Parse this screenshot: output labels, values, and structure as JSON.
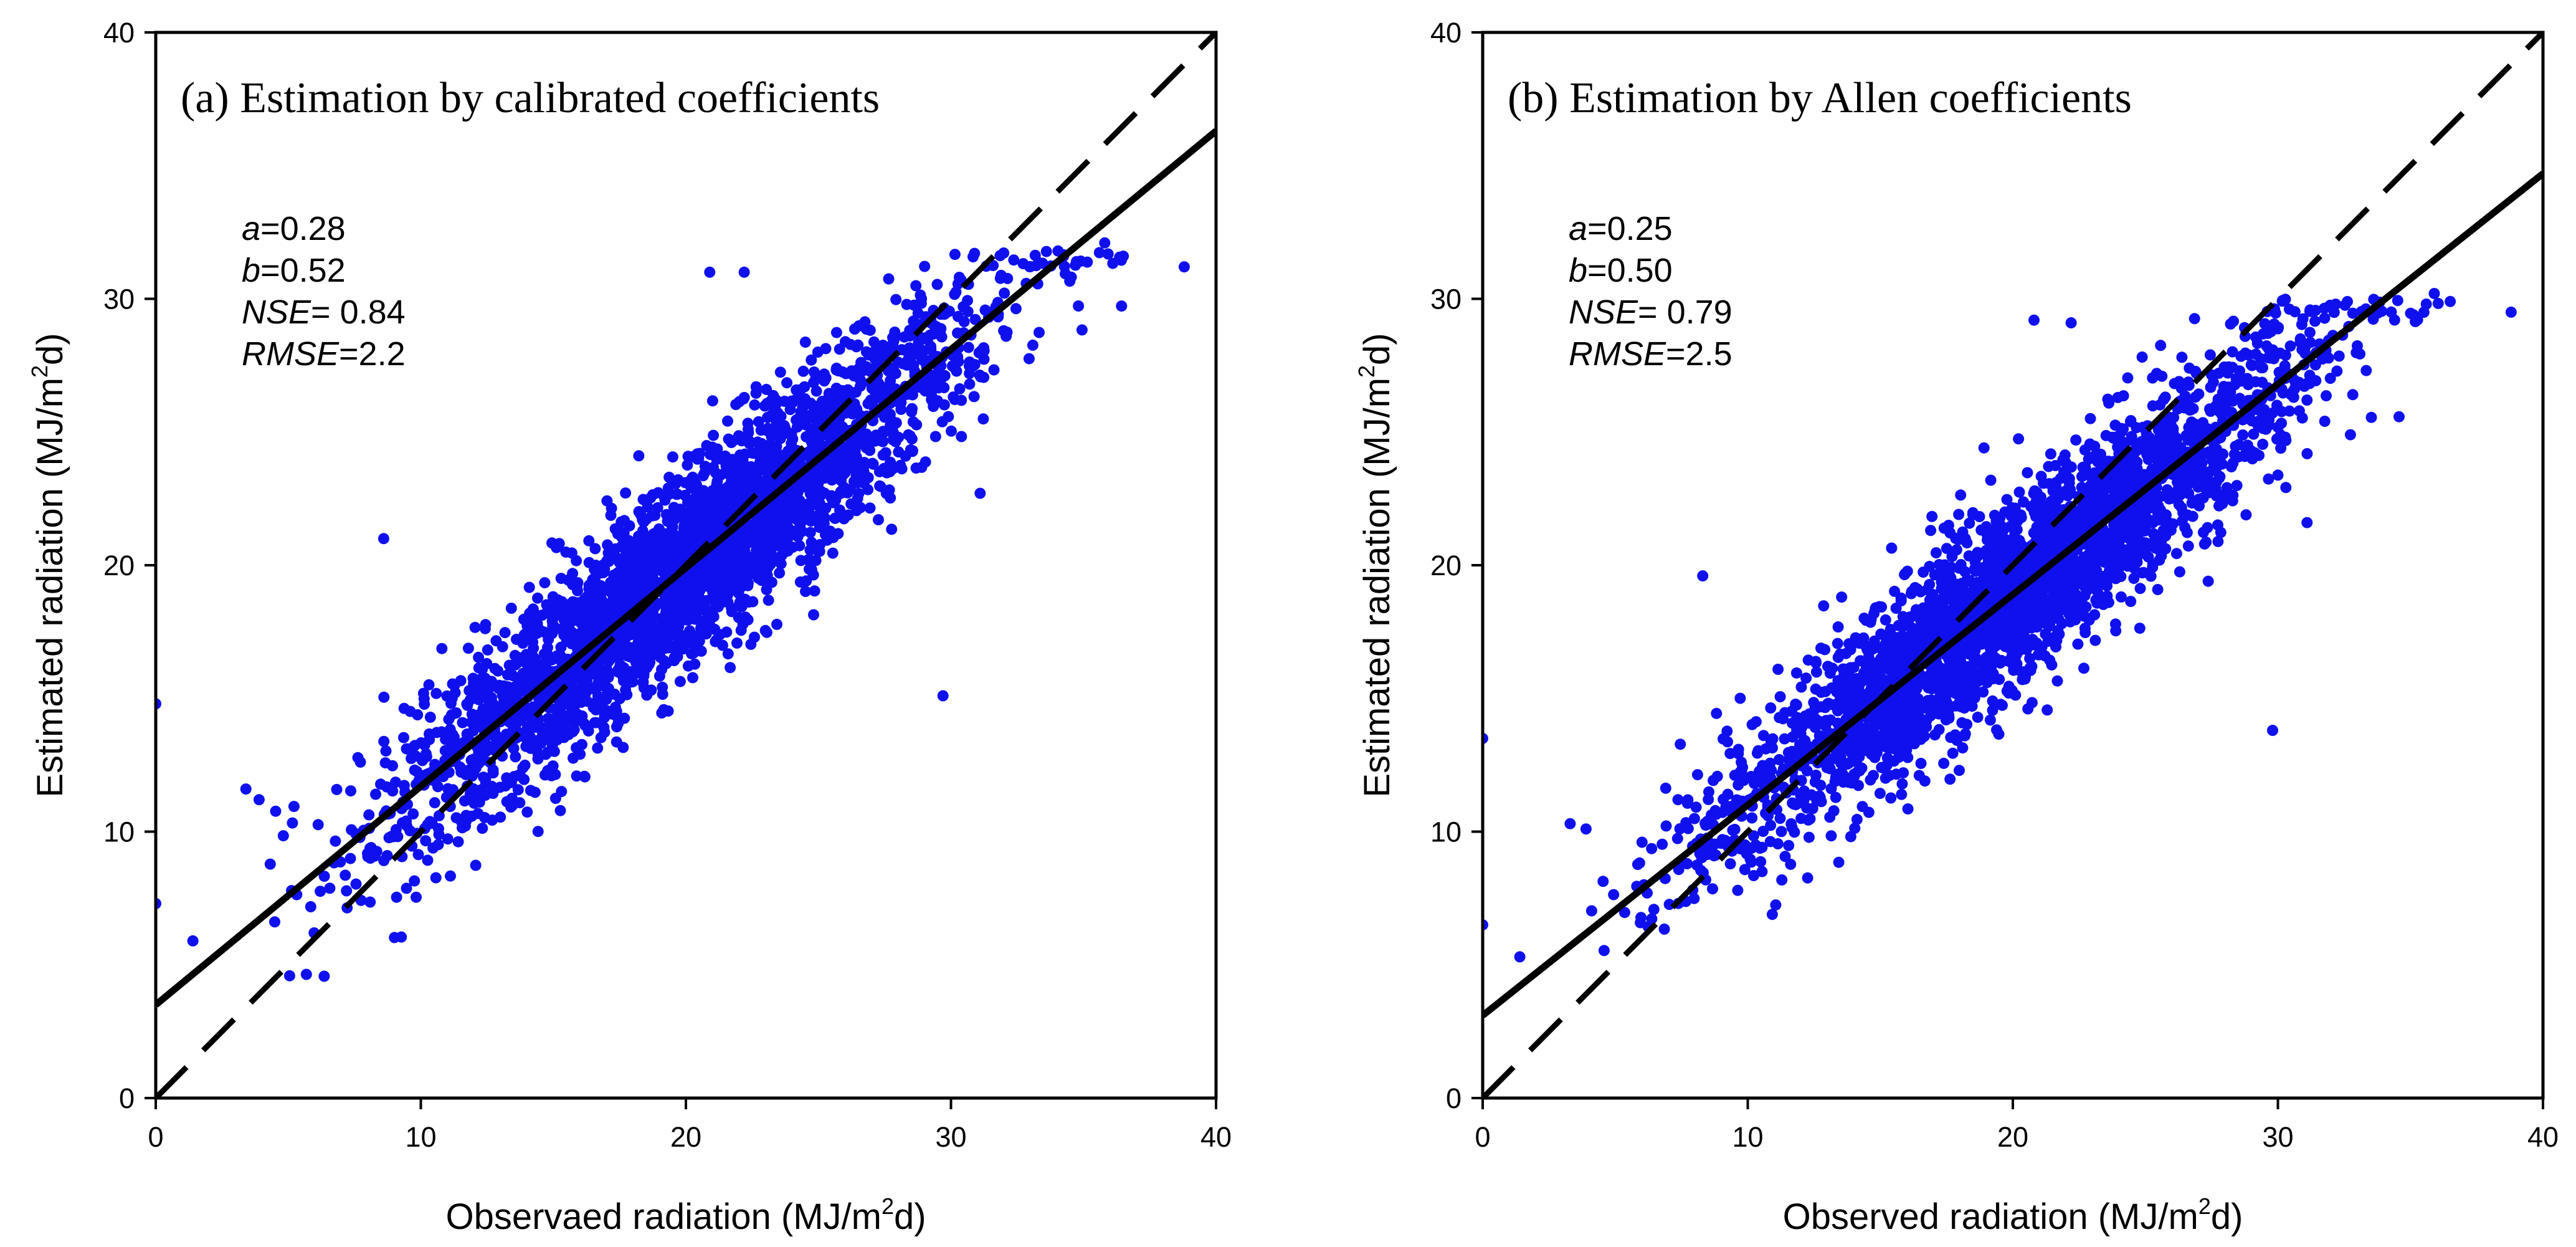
{
  "chart_data": [
    {
      "type": "scatter",
      "panel": "a",
      "title": "(a) Estimation by calibrated coefficients",
      "xlabel": "Observaed radiation (MJ/m",
      "xlabel_sup": "2",
      "xlabel_tail": "d)",
      "ylabel": "Estimated radiation (MJ/m",
      "ylabel_sup": "2",
      "ylabel_tail": "d)",
      "xlim": [
        0,
        40
      ],
      "ylim": [
        0,
        40
      ],
      "xticks": [
        "0",
        "10",
        "20",
        "30",
        "40"
      ],
      "yticks": [
        "0",
        "10",
        "20",
        "30",
        "40"
      ],
      "stats": [
        {
          "label": "a",
          "text": "=0.28"
        },
        {
          "label": "b",
          "text": "=0.52"
        },
        {
          "label": "NSE",
          "text": "= 0.84"
        },
        {
          "label": "RMSE",
          "text": "=2.2"
        }
      ],
      "fit_line": {
        "intercept": 3.5,
        "slope": 0.82
      },
      "one_to_one": true,
      "point_color": "#1010ee",
      "cloud": {
        "slope": 0.81,
        "intercept": 3.7,
        "spread": 1.8,
        "x_mean": 20,
        "x_sd": 5.5,
        "count": 3200,
        "x_min": 4,
        "x_max": 36.5,
        "y_cap": 31.8
      },
      "outliers": [
        [
          0,
          14.8
        ],
        [
          0,
          7.3
        ],
        [
          1.4,
          5.9
        ],
        [
          3.4,
          11.6
        ],
        [
          3.9,
          11.2
        ],
        [
          8.6,
          21
        ],
        [
          29.7,
          15.1
        ],
        [
          38.8,
          31.2
        ],
        [
          36.5,
          31.6
        ],
        [
          35.8,
          32.1
        ],
        [
          31.1,
          22.7
        ],
        [
          22.2,
          31
        ],
        [
          20.9,
          31
        ]
      ]
    },
    {
      "type": "scatter",
      "panel": "b",
      "title": "(b) Estimation by Allen coefficients",
      "xlabel": "Observed radiation (MJ/m",
      "xlabel_sup": "2",
      "xlabel_tail": "d)",
      "ylabel": "Estimated radiation (MJ/m",
      "ylabel_sup": "2",
      "ylabel_tail": "d)",
      "xlim": [
        0,
        40
      ],
      "ylim": [
        0,
        40
      ],
      "xticks": [
        "0",
        "10",
        "20",
        "30",
        "40"
      ],
      "yticks": [
        "0",
        "10",
        "20",
        "30",
        "40"
      ],
      "stats": [
        {
          "label": "a",
          "text": "=0.25"
        },
        {
          "label": "b",
          "text": "=0.50"
        },
        {
          "label": "NSE",
          "text": "= 0.79"
        },
        {
          "label": "RMSE",
          "text": "=2.5"
        }
      ],
      "fit_line": {
        "intercept": 3.1,
        "slope": 0.79
      },
      "one_to_one": true,
      "point_color": "#1010ee",
      "cloud": {
        "slope": 0.78,
        "intercept": 3.3,
        "spread": 1.7,
        "x_mean": 20,
        "x_sd": 5.5,
        "count": 3200,
        "x_min": 4,
        "x_max": 36.5,
        "y_cap": 30
      },
      "outliers": [
        [
          0,
          13.5
        ],
        [
          0,
          6.5
        ],
        [
          1.4,
          5.3
        ],
        [
          3.3,
          10.3
        ],
        [
          3.9,
          10.1
        ],
        [
          8.3,
          19.6
        ],
        [
          29.8,
          13.8
        ],
        [
          38.8,
          29.5
        ],
        [
          36.5,
          29.9
        ],
        [
          35.9,
          30.2
        ],
        [
          31.1,
          21.6
        ],
        [
          22.2,
          29.1
        ],
        [
          20.8,
          29.2
        ]
      ]
    }
  ]
}
